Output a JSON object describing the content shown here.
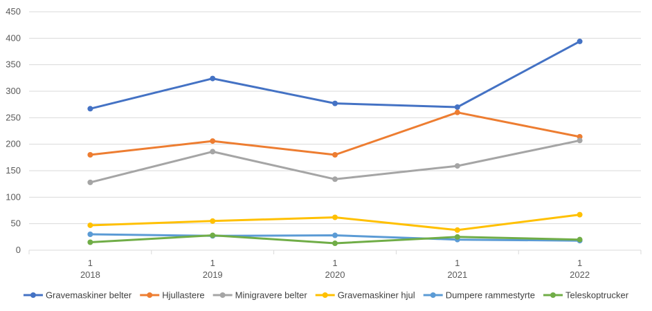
{
  "chart_data": {
    "type": "line",
    "title": "",
    "xlabel": "",
    "ylabel": "",
    "ylim": [
      0,
      450
    ],
    "ytick_step": 50,
    "grid": true,
    "legend_position": "bottom",
    "categories": [
      {
        "top": "1",
        "bottom": "2018"
      },
      {
        "top": "1",
        "bottom": "2019"
      },
      {
        "top": "1",
        "bottom": "2020"
      },
      {
        "top": "1",
        "bottom": "2021"
      },
      {
        "top": "1",
        "bottom": "2022"
      }
    ],
    "series": [
      {
        "name": "Gravemaskiner belter",
        "color": "#4472C4",
        "values": [
          267,
          324,
          277,
          270,
          394
        ]
      },
      {
        "name": "Hjullastere",
        "color": "#ED7D31",
        "values": [
          180,
          206,
          180,
          260,
          214
        ]
      },
      {
        "name": "Minigravere belter",
        "color": "#A5A5A5",
        "values": [
          128,
          186,
          134,
          159,
          207
        ]
      },
      {
        "name": "Gravemaskiner hjul",
        "color": "#FFC000",
        "values": [
          47,
          55,
          62,
          38,
          67
        ]
      },
      {
        "name": "Dumpere rammestyrte",
        "color": "#5B9BD5",
        "values": [
          30,
          27,
          28,
          20,
          18
        ]
      },
      {
        "name": "Teleskoptrucker",
        "color": "#70AD47",
        "values": [
          15,
          28,
          13,
          25,
          20
        ]
      }
    ]
  }
}
